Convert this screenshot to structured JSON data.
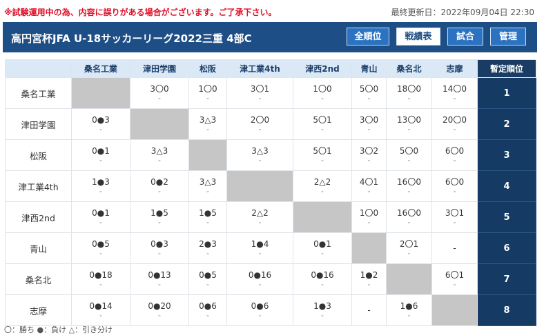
{
  "notice": "※試験運用中の為、内容に誤りがある場合がございます。ご了承下さい。",
  "updated": "最終更新日：2022年09月04日 22:30",
  "header": {
    "title": "高円宮杯JFA U-18サッカーリーグ2022三重 4部C",
    "buttons": [
      "全順位",
      "戦績表",
      "試合",
      "管理"
    ]
  },
  "table": {
    "corner": "",
    "columns": [
      "桑名工業",
      "津田学園",
      "松阪",
      "津工業4th",
      "津西2nd",
      "青山",
      "桑名北",
      "志摩"
    ],
    "rank_header": "暫定順位",
    "rows": [
      {
        "team": "桑名工業",
        "rank": "1",
        "cells": [
          null,
          "3〇0",
          "1〇0",
          "3〇1",
          "1〇0",
          "5〇0",
          "18〇0",
          "14〇0"
        ]
      },
      {
        "team": "津田学園",
        "rank": "2",
        "cells": [
          "0●3",
          null,
          "3△3",
          "2〇0",
          "5〇1",
          "3〇0",
          "13〇0",
          "20〇0"
        ]
      },
      {
        "team": "松阪",
        "rank": "3",
        "cells": [
          "0●1",
          "3△3",
          null,
          "3△3",
          "5〇1",
          "3〇2",
          "5〇0",
          "6〇0"
        ]
      },
      {
        "team": "津工業4th",
        "rank": "4",
        "cells": [
          "1●3",
          "0●2",
          "3△3",
          null,
          "2△2",
          "4〇1",
          "16〇0",
          "6〇0"
        ]
      },
      {
        "team": "津西2nd",
        "rank": "5",
        "cells": [
          "0●1",
          "1●5",
          "1●5",
          "2△2",
          null,
          "1〇0",
          "16〇0",
          "3〇1"
        ]
      },
      {
        "team": "青山",
        "rank": "6",
        "cells": [
          "0●5",
          "0●3",
          "2●3",
          "1●4",
          "0●1",
          null,
          "2〇1",
          "-"
        ]
      },
      {
        "team": "桑名北",
        "rank": "7",
        "cells": [
          "0●18",
          "0●13",
          "0●5",
          "0●16",
          "0●16",
          "1●2",
          null,
          "6〇1"
        ]
      },
      {
        "team": "志摩",
        "rank": "8",
        "cells": [
          "0●14",
          "0●20",
          "0●6",
          "0●6",
          "1●3",
          "-",
          "1●6",
          null
        ]
      }
    ],
    "cell_sub": "-"
  },
  "legend": "〇：勝ち ●：負け △：引き分け"
}
